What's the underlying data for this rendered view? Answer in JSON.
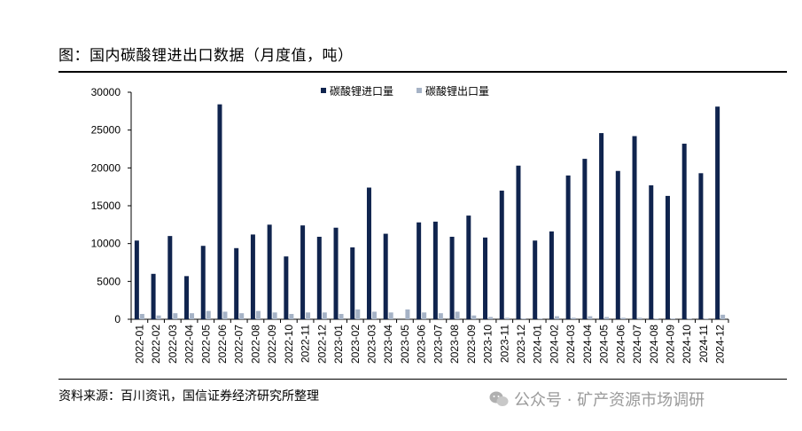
{
  "title": "图：国内碳酸锂进出口数据（月度值，吨）",
  "source": "资料来源：百川资讯，国信证券经济研究所整理",
  "watermark": "公众号 · 矿产资源市场调研",
  "colors": {
    "import": "#10244e",
    "export": "#a6b3c6"
  },
  "chart_data": {
    "type": "bar",
    "title": "图：国内碳酸锂进出口数据（月度值，吨）",
    "xlabel": "",
    "ylabel": "",
    "ylim": [
      0,
      30000
    ],
    "yticks": [
      0,
      5000,
      10000,
      15000,
      20000,
      25000,
      30000
    ],
    "grid": false,
    "legend_position": "top",
    "categories": [
      "2022-01",
      "2022-02",
      "2022-03",
      "2022-04",
      "2022-05",
      "2022-06",
      "2022-07",
      "2022-08",
      "2022-09",
      "2022-10",
      "2022-11",
      "2022-12",
      "2023-01",
      "2023-02",
      "2023-03",
      "2023-04",
      "2023-05",
      "2023-06",
      "2023-07",
      "2023-08",
      "2023-09",
      "2023-10",
      "2023-11",
      "2023-12",
      "2024-01",
      "2024-02",
      "2024-03",
      "2024-04",
      "2024-05",
      "2024-06",
      "2024-07",
      "2024-08",
      "2024-09",
      "2024-10",
      "2024-11",
      "2024-12"
    ],
    "series": [
      {
        "name": "碳酸锂进口量",
        "values": [
          10400,
          6000,
          11000,
          5700,
          9700,
          28400,
          9400,
          11200,
          12500,
          8300,
          12400,
          10900,
          12100,
          9500,
          17400,
          11300,
          0,
          12800,
          12900,
          10900,
          13700,
          10800,
          17000,
          20300,
          10400,
          11600,
          19000,
          21200,
          24600,
          19600,
          24200,
          17700,
          16300,
          23200,
          19300,
          28100
        ]
      },
      {
        "name": "碳酸锂出口量",
        "values": [
          700,
          500,
          800,
          800,
          1100,
          1000,
          800,
          1100,
          900,
          700,
          900,
          900,
          700,
          1300,
          1000,
          900,
          1300,
          900,
          800,
          1000,
          500,
          300,
          200,
          100,
          100,
          400,
          200,
          400,
          300,
          200,
          200,
          100,
          100,
          100,
          100,
          600
        ]
      }
    ]
  }
}
